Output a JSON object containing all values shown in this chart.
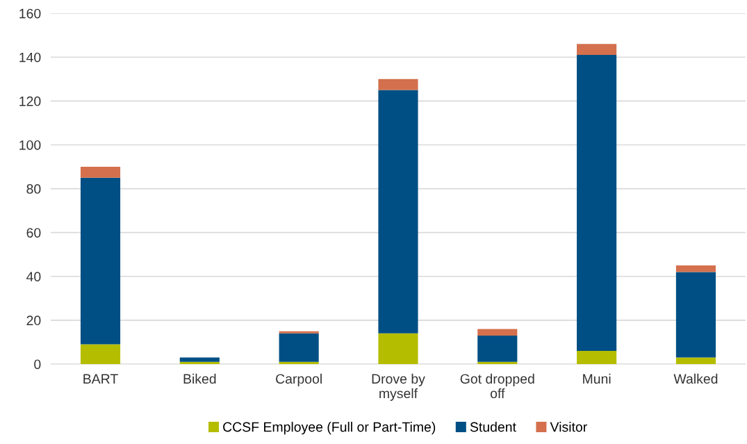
{
  "chart_data": {
    "type": "bar",
    "stacked": true,
    "categories": [
      "BART",
      "Biked",
      "Carpool",
      "Drove by\nmyself",
      "Got dropped\noff",
      "Muni",
      "Walked"
    ],
    "series": [
      {
        "name": "CCSF Employee (Full or Part-Time)",
        "color": "#b5bd00",
        "values": [
          9,
          1,
          1,
          14,
          1,
          6,
          3
        ]
      },
      {
        "name": "Student",
        "color": "#004f84",
        "values": [
          76,
          2,
          13,
          111,
          12,
          135,
          39
        ]
      },
      {
        "name": "Visitor",
        "color": "#d4704d",
        "values": [
          5,
          0,
          1,
          5,
          3,
          5,
          3
        ]
      }
    ],
    "ylim": [
      0,
      160
    ],
    "yticks": [
      0,
      20,
      40,
      60,
      80,
      100,
      120,
      140,
      160
    ],
    "grid": "y",
    "legend": "bottom"
  }
}
